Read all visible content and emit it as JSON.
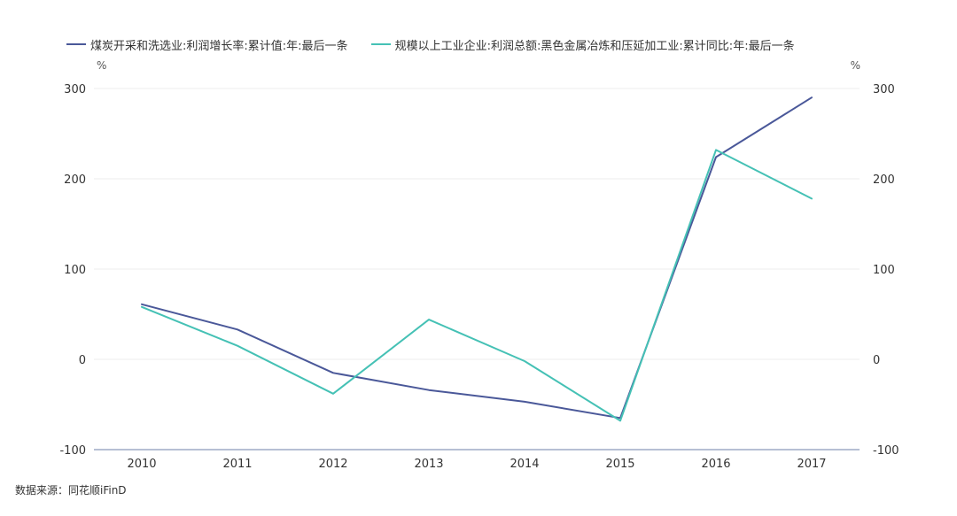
{
  "chart_data": {
    "type": "line",
    "categories": [
      "2010",
      "2011",
      "2012",
      "2013",
      "2014",
      "2015",
      "2016",
      "2017"
    ],
    "series": [
      {
        "name": "煤炭开采和洗选业:利润增长率:累计值:年:最后一条",
        "color": "#4a5899",
        "axis": "left",
        "values": [
          61,
          33,
          -15,
          -34,
          -47,
          -65,
          224,
          290
        ]
      },
      {
        "name": "规模以上工业企业:利润总额:黑色金属冶炼和压延加工业:累计同比:年:最后一条",
        "color": "#45c1b5",
        "axis": "right",
        "values": [
          58,
          15,
          -38,
          44,
          -2,
          -68,
          232,
          178
        ]
      }
    ],
    "ylim": [
      -100,
      300
    ],
    "yticks": [
      "300",
      "200",
      "100",
      "0",
      "-100"
    ],
    "left_unit": "%",
    "right_unit": "%",
    "grid": true,
    "legend_position": "top-left"
  },
  "source": "数据来源：同花顺iFinD"
}
